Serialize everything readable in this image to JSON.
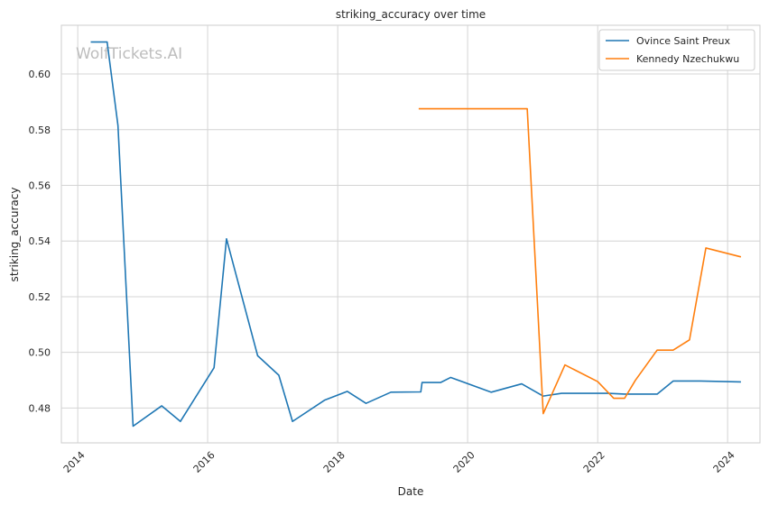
{
  "chart_data": {
    "type": "line",
    "title": "striking_accuracy over time",
    "xlabel": "Date",
    "ylabel": "striking_accuracy",
    "watermark": "WolfTickets.AI",
    "xlim": [
      "2013-10-01",
      "2024-07-01"
    ],
    "ylim": [
      0.4675,
      0.6175
    ],
    "grid": true,
    "legend_position": "top-right",
    "x_ticks": [
      "2014-01-01",
      "2016-01-01",
      "2018-01-01",
      "2020-01-01",
      "2022-01-01",
      "2024-01-01"
    ],
    "x_tick_labels": [
      "2014",
      "2016",
      "2018",
      "2020",
      "2022",
      "2024"
    ],
    "y_ticks": [
      0.48,
      0.5,
      0.52,
      0.54,
      0.56,
      0.58,
      0.6
    ],
    "y_tick_labels": [
      "0.48",
      "0.50",
      "0.52",
      "0.54",
      "0.56",
      "0.58",
      "0.60"
    ],
    "series": [
      {
        "name": "Ovince Saint Preux",
        "color": "#1f77b4",
        "x": [
          "2014-03-15",
          "2014-06-15",
          "2014-08-15",
          "2014-11-08",
          "2015-04-18",
          "2015-08-01",
          "2016-02-06",
          "2016-04-16",
          "2016-10-08",
          "2017-02-04",
          "2017-04-22",
          "2017-10-21",
          "2018-02-24",
          "2018-06-09",
          "2018-10-27",
          "2019-04-13",
          "2019-04-20",
          "2019-08-03",
          "2019-09-28",
          "2020-05-13",
          "2020-10-31",
          "2021-03-01",
          "2021-06-12",
          "2022-03-01",
          "2022-06-01",
          "2022-12-01",
          "2023-03-01",
          "2023-08-01",
          "2024-03-16"
        ],
        "values": [
          0.6115,
          0.6115,
          0.5815,
          0.4735,
          0.4808,
          0.4752,
          0.4945,
          0.5408,
          0.4988,
          0.4918,
          0.4752,
          0.4829,
          0.486,
          0.4817,
          0.4857,
          0.4858,
          0.4892,
          0.4892,
          0.491,
          0.4857,
          0.4887,
          0.4843,
          0.4853,
          0.4853,
          0.485,
          0.485,
          0.4897,
          0.4897,
          0.4894
        ]
      },
      {
        "name": "Kennedy Nzechukwu",
        "color": "#ff7f0e",
        "x": [
          "2019-04-01",
          "2020-12-01",
          "2021-03-01",
          "2021-07-01",
          "2022-01-01",
          "2022-04-01",
          "2022-06-01",
          "2022-08-01",
          "2022-12-01",
          "2023-03-01",
          "2023-06-01",
          "2023-09-01",
          "2024-03-16"
        ],
        "values": [
          0.5875,
          0.5875,
          0.478,
          0.4955,
          0.4895,
          0.4835,
          0.4835,
          0.49,
          0.5008,
          0.5008,
          0.5045,
          0.5375,
          0.5343
        ]
      }
    ]
  }
}
